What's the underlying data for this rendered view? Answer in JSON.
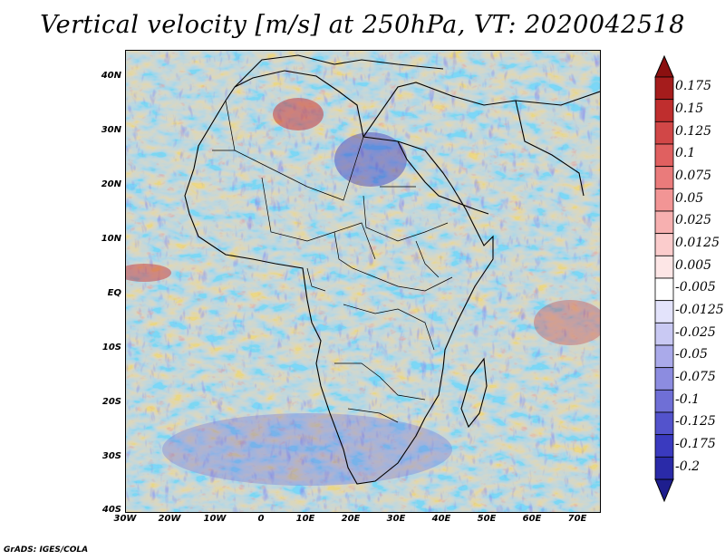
{
  "title": "Vertical velocity [m/s] at 250hPa, VT: 2020042518",
  "credit": "GrADS: IGES/COLA",
  "lat_labels": [
    "40N",
    "30N",
    "20N",
    "10N",
    "EQ",
    "10S",
    "20S",
    "30S",
    "40S"
  ],
  "lon_labels": [
    "30W",
    "20W",
    "10W",
    "0",
    "10E",
    "20E",
    "30E",
    "40E",
    "50E",
    "60E",
    "70E"
  ],
  "colorbar": {
    "labels": [
      "0.175",
      "0.15",
      "0.125",
      "0.1",
      "0.075",
      "0.05",
      "0.025",
      "0.0125",
      "0.005",
      "-0.005",
      "-0.0125",
      "-0.025",
      "-0.05",
      "-0.075",
      "-0.1",
      "-0.125",
      "-0.175",
      "-0.2"
    ],
    "colors": [
      "#a51c1c",
      "#bf2e2e",
      "#d14747",
      "#e06060",
      "#ea7b7b",
      "#f29595",
      "#f7b0b0",
      "#fbcccc",
      "#fde6e6",
      "#ffffff",
      "#e3e3fb",
      "#c9c9f3",
      "#aaaaea",
      "#8c8ce0",
      "#6f6fd6",
      "#5353cc",
      "#3a3abf",
      "#2a2aa8"
    ],
    "top_arrow_color": "#8b1010",
    "bottom_arrow_color": "#1e1e8e"
  },
  "map_colors": {
    "background": "#e6e6f8",
    "coastline": "#000000"
  }
}
